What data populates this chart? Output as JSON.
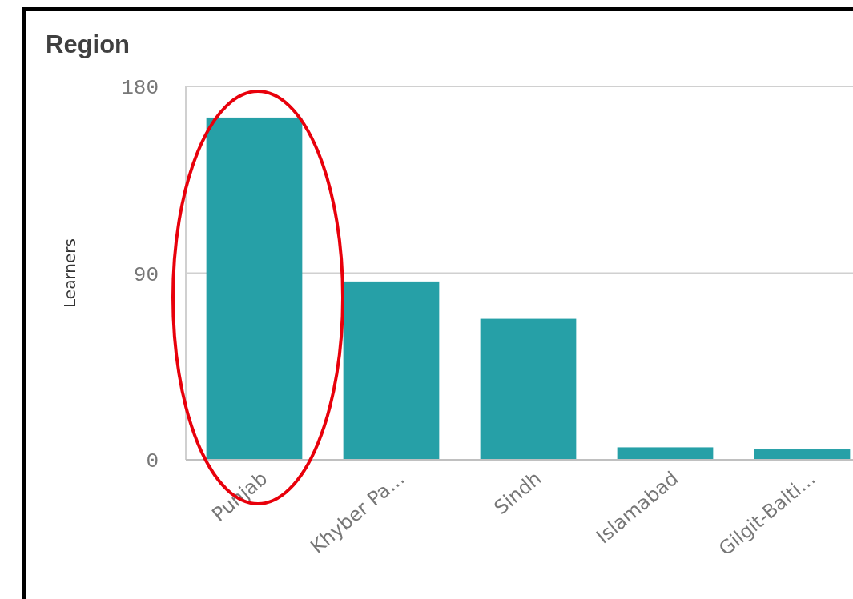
{
  "chart_data": {
    "type": "bar",
    "title": "Region",
    "ylabel": "Learners",
    "categories": [
      "Punjab",
      "Khyber Pa...",
      "Sindh",
      "Islamabad",
      "Gilgit-Balti..."
    ],
    "values": [
      165,
      86,
      68,
      6,
      5
    ],
    "color": "#26a0a7",
    "ylim": [
      0,
      180
    ],
    "yticks": [
      0,
      90,
      180
    ],
    "grid": "y"
  }
}
